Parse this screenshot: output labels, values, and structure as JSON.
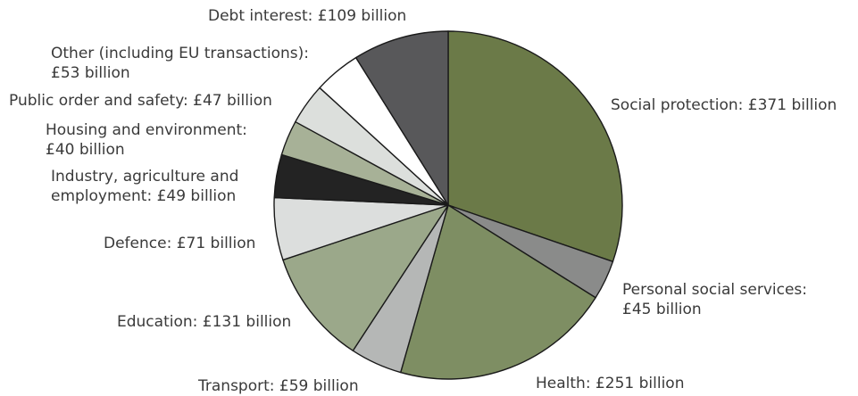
{
  "chart_data": {
    "type": "pie",
    "title": "",
    "start": "12 o'clock",
    "direction": "clockwise",
    "slices": [
      {
        "label_lines": [
          "Social protection: £371 billion"
        ],
        "value": 371,
        "color": "#6b7a48"
      },
      {
        "label_lines": [
          "Personal social services:",
          "£45 billion"
        ],
        "value": 45,
        "color": "#8a8b8a"
      },
      {
        "label_lines": [
          "Health: £251 billion"
        ],
        "value": 251,
        "color": "#7e8e63"
      },
      {
        "label_lines": [
          "Transport: £59 billion"
        ],
        "value": 59,
        "color": "#b5b7b6"
      },
      {
        "label_lines": [
          "Education: £131 billion"
        ],
        "value": 131,
        "color": "#9ba88a"
      },
      {
        "label_lines": [
          "Defence: £71 billion"
        ],
        "value": 71,
        "color": "#dcdedd"
      },
      {
        "label_lines": [
          "Industry, agriculture and",
          "employment: £49 billion"
        ],
        "value": 49,
        "color": "#232323"
      },
      {
        "label_lines": [
          "Housing and environment:",
          "£40 billion"
        ],
        "value": 40,
        "color": "#a7b197"
      },
      {
        "label_lines": [
          "Public order and safety: £47 billion"
        ],
        "value": 47,
        "color": "#dcdfdc"
      },
      {
        "label_lines": [
          "Other (including EU transactions):",
          "£53 billion"
        ],
        "value": 53,
        "color": "#ffffff"
      },
      {
        "label_lines": [
          "Debt interest: £109 billion"
        ],
        "value": 109,
        "color": "#58585a"
      }
    ]
  }
}
